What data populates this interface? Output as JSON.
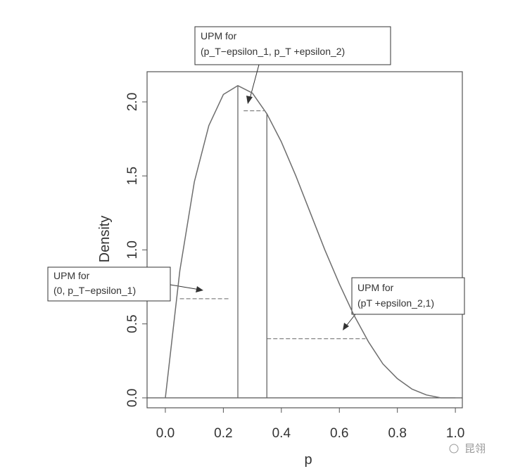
{
  "chart_data": {
    "type": "line",
    "xlabel": "p",
    "ylabel": "Density",
    "x": [
      0,
      0.05,
      0.1,
      0.15,
      0.2,
      0.25,
      0.3,
      0.35,
      0.4,
      0.45,
      0.5,
      0.55,
      0.6,
      0.65,
      0.7,
      0.75,
      0.8,
      0.85,
      0.9,
      0.95,
      1.0
    ],
    "series": [
      {
        "color": "#6e6e6e",
        "values": [
          0,
          0.86,
          1.46,
          1.84,
          2.05,
          2.11,
          2.06,
          1.92,
          1.73,
          1.5,
          1.25,
          1.0,
          0.77,
          0.56,
          0.38,
          0.23,
          0.13,
          0.06,
          0.02,
          0,
          0
        ]
      }
    ],
    "vlines": [
      {
        "x": 0.25,
        "top": 2.11
      },
      {
        "x": 0.35,
        "top": 1.92
      }
    ],
    "segments": [
      {
        "x": [
          0.05,
          0.22
        ],
        "y": 0.67
      },
      {
        "x": [
          0.27,
          0.34
        ],
        "y": 1.94
      },
      {
        "x": [
          0.35,
          0.69
        ],
        "y": 0.4
      }
    ],
    "xlim": [
      -0.063,
      1.024
    ],
    "ylim": [
      -0.067,
      2.204
    ],
    "xticks": [
      {
        "value": 0,
        "label": "0.0"
      },
      0.2,
      0.4,
      0.6,
      0.8,
      {
        "value": 1,
        "label": "1.0"
      }
    ],
    "yticks": [
      {
        "value": 0,
        "label": "0.0"
      },
      0.5,
      {
        "value": 1,
        "label": "1.0"
      },
      1.5,
      {
        "value": 2,
        "label": "2.0"
      }
    ],
    "annotations": [
      {
        "lines": [
          "UPM for",
          "(p_T−epsilon_1, p_T +epsilon_2)"
        ]
      },
      {
        "lines": [
          "UPM for",
          "(0, p_T−epsilon_1)"
        ]
      },
      {
        "lines": [
          "UPM for",
          "(pT +epsilon_2,1)"
        ]
      }
    ],
    "watermark": "昆翎"
  }
}
